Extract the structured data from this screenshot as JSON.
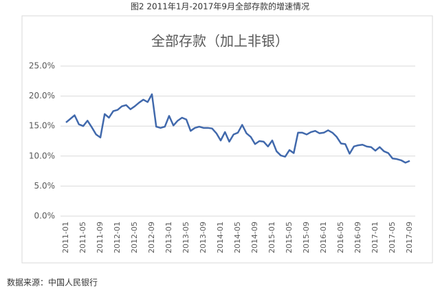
{
  "caption": "图2 2011年1月-2017年9月全部存款的增速情况",
  "source": "数据来源：中国人民银行",
  "chart_data": {
    "type": "line",
    "title": "全部存款（加上非银）",
    "categories": [
      "2011-01",
      null,
      null,
      null,
      "2011-05",
      null,
      null,
      null,
      "2011-09",
      null,
      null,
      null,
      "2012-01",
      null,
      null,
      null,
      "2012-05",
      null,
      null,
      null,
      "2012-09",
      null,
      null,
      null,
      "2013-01",
      null,
      null,
      null,
      "2013-05",
      null,
      null,
      null,
      "2013-09",
      null,
      null,
      null,
      "2014-01",
      null,
      null,
      null,
      "2014-05",
      null,
      null,
      null,
      "2014-09",
      null,
      null,
      null,
      "2015-01",
      null,
      null,
      null,
      "2015-05",
      null,
      null,
      null,
      "2015-09",
      null,
      null,
      null,
      "2016-01",
      null,
      null,
      null,
      "2016-05",
      null,
      null,
      null,
      "2016-09",
      null,
      null,
      null,
      "2017-01",
      null,
      null,
      null,
      "2017-05",
      null,
      null,
      null,
      "2017-09"
    ],
    "values": [
      15.6,
      16.2,
      16.8,
      15.3,
      15.0,
      15.9,
      14.8,
      13.6,
      13.1,
      17.0,
      16.4,
      17.5,
      17.7,
      18.3,
      18.5,
      17.8,
      18.3,
      18.9,
      19.4,
      19.0,
      20.3,
      14.9,
      14.7,
      14.9,
      16.7,
      15.1,
      15.9,
      16.4,
      16.1,
      14.2,
      14.7,
      14.9,
      14.7,
      14.7,
      14.6,
      13.8,
      12.6,
      14.0,
      12.4,
      13.6,
      13.9,
      15.2,
      13.8,
      13.2,
      12.0,
      12.5,
      12.4,
      11.6,
      12.6,
      10.8,
      10.1,
      9.9,
      11.0,
      10.5,
      13.9,
      13.9,
      13.6,
      14.0,
      14.2,
      13.8,
      13.9,
      14.3,
      13.9,
      13.2,
      12.1,
      12.0,
      10.4,
      11.6,
      11.8,
      11.9,
      11.6,
      11.5,
      10.9,
      11.5,
      10.8,
      10.5,
      9.6,
      9.5,
      9.3,
      8.9,
      9.2
    ],
    "color": "#4169ac",
    "ylim": [
      0,
      25
    ],
    "yticks": [
      {
        "value": 0,
        "label": "0.0%"
      },
      {
        "value": 5,
        "label": "5.0%"
      },
      {
        "value": 10,
        "label": "10.0%"
      },
      {
        "value": 15,
        "label": "15.0%"
      },
      {
        "value": 20,
        "label": "20.0%"
      },
      {
        "value": 25,
        "label": "25.0%"
      }
    ],
    "grid": true
  }
}
